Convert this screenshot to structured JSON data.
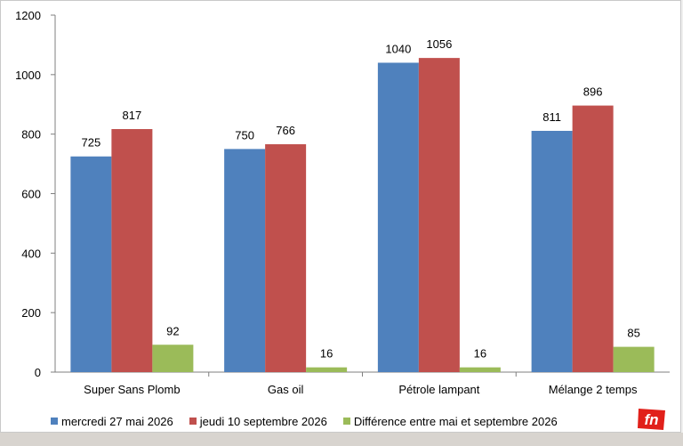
{
  "chart_data": {
    "type": "bar",
    "categories": [
      "Super Sans Plomb",
      "Gas oil",
      "Pétrole lampant",
      "Mélange 2 temps"
    ],
    "series": [
      {
        "name": "mercredi 27 mai 2026",
        "values": [
          725,
          750,
          1040,
          811
        ],
        "color": "#4f81bd"
      },
      {
        "name": "jeudi 10 septembre 2026",
        "values": [
          817,
          766,
          1056,
          896
        ],
        "color": "#c0504d"
      },
      {
        "name": "Différence entre mai et septembre 2026",
        "values": [
          92,
          16,
          16,
          85
        ],
        "color": "#9bbb59"
      }
    ],
    "yticks": [
      0,
      200,
      400,
      600,
      800,
      1000,
      1200
    ],
    "ylim": [
      0,
      1200
    ],
    "title": "",
    "xlabel": "",
    "ylabel": "",
    "grid": false,
    "legend_position": "bottom"
  },
  "logo": {
    "text": "fn",
    "color": "#e1201a"
  }
}
